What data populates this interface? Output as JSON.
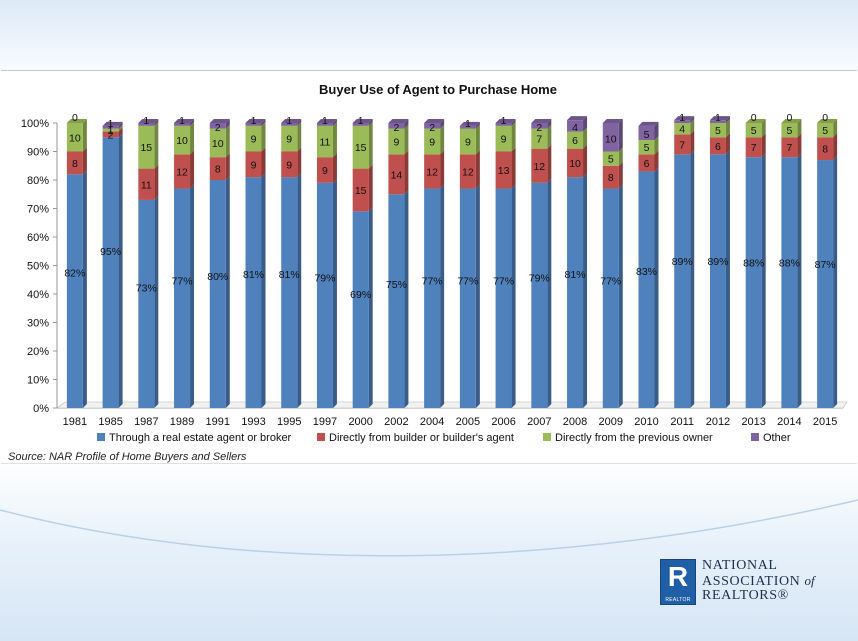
{
  "chart_data": {
    "type": "bar",
    "stacked": true,
    "percent_stacked": true,
    "title": "Buyer Use of Agent to Purchase Home",
    "categories": [
      "1981",
      "1985",
      "1987",
      "1989",
      "1991",
      "1993",
      "1995",
      "1997",
      "2000",
      "2002",
      "2004",
      "2005",
      "2006",
      "2007",
      "2008",
      "2009",
      "2010",
      "2011",
      "2012",
      "2013",
      "2014",
      "2015"
    ],
    "series": [
      {
        "name": "Through a real estate agent or broker",
        "color": "#4f81bd",
        "values": [
          82,
          95,
          73,
          77,
          80,
          81,
          81,
          79,
          69,
          75,
          77,
          77,
          77,
          79,
          81,
          77,
          83,
          89,
          89,
          88,
          88,
          87
        ],
        "labels": [
          "82%",
          "95%",
          "73%",
          "77%",
          "80%",
          "81%",
          "81%",
          "79%",
          "69%",
          "75%",
          "77%",
          "77%",
          "77%",
          "79%",
          "81%",
          "77%",
          "83%",
          "89%",
          "89%",
          "88%",
          "88%",
          "87%"
        ]
      },
      {
        "name": "Directly from builder or builder's agent",
        "color": "#c0504d",
        "values": [
          8,
          2,
          11,
          12,
          8,
          9,
          9,
          9,
          15,
          14,
          12,
          12,
          13,
          12,
          10,
          8,
          6,
          7,
          6,
          7,
          7,
          8
        ],
        "labels": [
          "8",
          "2",
          "11",
          "12",
          "8",
          "9",
          "9",
          "9",
          "15",
          "14",
          "12",
          "12",
          "13",
          "12",
          "10",
          "8",
          "6",
          "7",
          "6",
          "7",
          "7",
          "8"
        ]
      },
      {
        "name": "Directly from the previous owner",
        "color": "#9bbb59",
        "values": [
          10,
          1,
          15,
          10,
          10,
          9,
          9,
          11,
          15,
          9,
          9,
          9,
          9,
          7,
          6,
          5,
          5,
          4,
          5,
          5,
          5,
          5
        ],
        "labels": [
          "10",
          "1",
          "15",
          "10",
          "10",
          "9",
          "9",
          "11",
          "15",
          "9",
          "9",
          "9",
          "9",
          "7",
          "6",
          "5",
          "5",
          "4",
          "5",
          "5",
          "5",
          "5"
        ]
      },
      {
        "name": "Other",
        "color": "#8064a2",
        "values": [
          0,
          1,
          1,
          1,
          2,
          1,
          1,
          1,
          1,
          2,
          2,
          1,
          1,
          2,
          4,
          10,
          5,
          1,
          1,
          0,
          0,
          0
        ],
        "labels": [
          "0",
          "1",
          "1",
          "1",
          "2",
          "1",
          "1",
          "1",
          "1",
          "2",
          "2",
          "1",
          "1",
          "2",
          "4",
          "10",
          "5",
          "1",
          "1",
          "0",
          "0",
          "0"
        ]
      }
    ],
    "y_ticks": [
      "0%",
      "10%",
      "20%",
      "30%",
      "40%",
      "50%",
      "60%",
      "70%",
      "80%",
      "90%",
      "100%"
    ],
    "ylim": [
      0,
      100
    ],
    "grid": false,
    "legend_position": "bottom"
  },
  "source": "Source: NAR Profile of Home Buyers and Sellers",
  "logo": {
    "mark": "R",
    "mark_caption": "REALTOR",
    "line1": "NATIONAL",
    "line2": "ASSOCIATION",
    "line2_suffix": "of",
    "line3": "REALTORS®"
  }
}
